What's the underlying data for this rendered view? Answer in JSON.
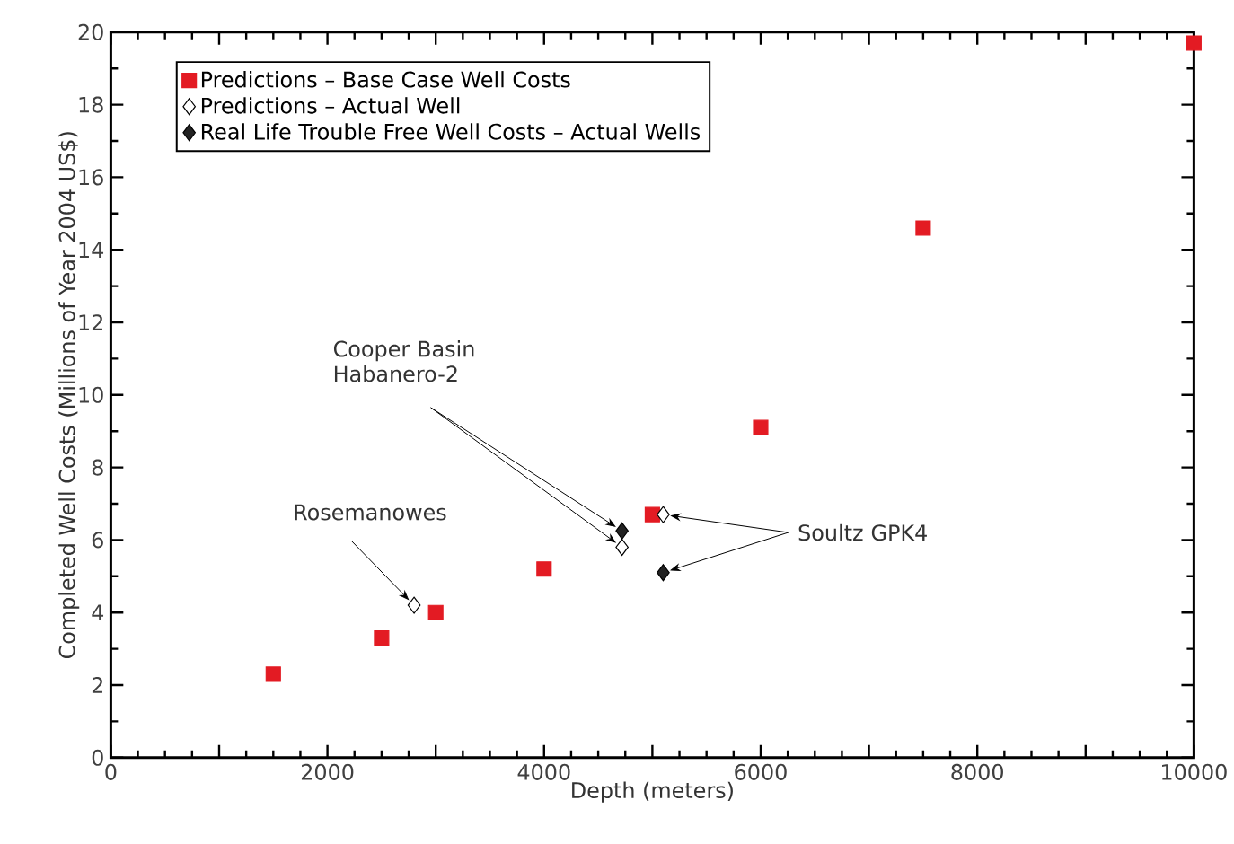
{
  "chart_data": {
    "type": "scatter",
    "xlabel": "Depth (meters)",
    "ylabel": "Completed Well Costs (Millions of Year 2004 US$)",
    "xlim": [
      0,
      10000
    ],
    "ylim": [
      0,
      20
    ],
    "xticks": [
      0,
      {
        "value": 1000,
        "label": null
      },
      2000,
      {
        "value": 3000,
        "label": null
      },
      4000,
      {
        "value": 5000,
        "label": null
      },
      6000,
      {
        "value": 7000,
        "label": null
      },
      8000,
      {
        "value": 9000,
        "label": null
      },
      10000
    ],
    "yticks": [
      0,
      2,
      4,
      6,
      8,
      10,
      12,
      14,
      16,
      18,
      20
    ],
    "legend": "top left",
    "grid": false,
    "series": [
      {
        "name": "Predictions – Base Case Well Costs",
        "color": "#e31b23",
        "marker": "square",
        "x": [
          1500,
          2500,
          3000,
          4000,
          5000,
          6000,
          7500,
          10000
        ],
        "values": [
          2.3,
          3.3,
          4.0,
          5.2,
          6.7,
          9.1,
          14.6,
          19.7
        ]
      },
      {
        "name": "Predictions – Actual Well",
        "color": "#ffffff",
        "marker": "diamond",
        "x": [
          2800,
          4720,
          5100
        ],
        "values": [
          4.2,
          5.8,
          6.7
        ]
      },
      {
        "name": "Real Life Trouble Free Well Costs – Actual Wells",
        "color": "#222222",
        "marker": "diamond",
        "x": [
          4720,
          5100
        ],
        "values": [
          6.25,
          5.1
        ]
      }
    ],
    "annotations": [
      {
        "text": "Cooper Basin Habanero-2",
        "x": 4720,
        "y": 6.25
      },
      {
        "text": "Rosemanowes",
        "x": 2800,
        "y": 4.2
      },
      {
        "text": "Soultz GPK4",
        "x": 5100,
        "y": 6.7
      }
    ]
  }
}
